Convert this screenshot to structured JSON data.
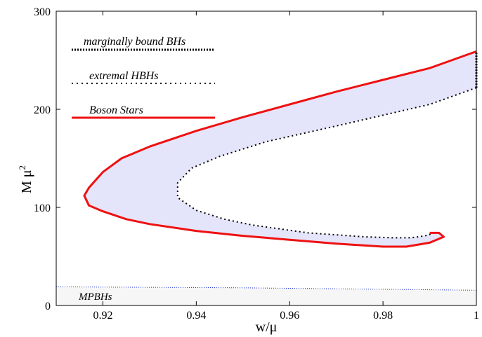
{
  "chart_data": {
    "type": "line",
    "xlabel": "w/μ",
    "ylabel": "M μ",
    "ylabel_superscript": "2",
    "xlim": [
      0.91,
      1.0
    ],
    "ylim": [
      0,
      300
    ],
    "xticks": [
      0.92,
      0.94,
      0.96,
      0.98,
      1.0
    ],
    "xtick_labels": [
      "0.92",
      "0.94",
      "0.96",
      "0.98",
      "1"
    ],
    "yticks": [
      0,
      100,
      200,
      300
    ],
    "ytick_labels": [
      "0",
      "100",
      "200",
      "300"
    ],
    "grid": false,
    "legend": {
      "placement": "top-left"
    },
    "colors": {
      "boson_stars": "#ee1111",
      "extremal": "#000000",
      "marginal": "#000000",
      "mpbhs": "#1a2fd0",
      "region_fill": "#e4e5fb",
      "mpbh_fill": "#f6f6f6"
    },
    "series": [
      {
        "name": "marginally bound BHs",
        "style": "dense-dotted",
        "x": [
          1.0,
          1.0
        ],
        "y": [
          222,
          259
        ]
      },
      {
        "name": "extremal HBHs",
        "style": "sparse-dotted",
        "x": [
          1.0,
          0.99,
          0.97,
          0.955,
          0.945,
          0.939,
          0.936,
          0.936,
          0.94,
          0.946,
          0.952,
          0.958,
          0.964,
          0.97,
          0.976,
          0.982,
          0.986,
          0.989,
          0.991
        ],
        "y": [
          222,
          205,
          183,
          167,
          152,
          140,
          125,
          110,
          97,
          88,
          82,
          78,
          74,
          72,
          70,
          69,
          69,
          71,
          74
        ]
      },
      {
        "name": "Boson Stars",
        "style": "solid",
        "x": [
          1.0,
          0.99,
          0.98,
          0.97,
          0.96,
          0.95,
          0.94,
          0.93,
          0.924,
          0.92,
          0.917,
          0.916,
          0.917,
          0.92,
          0.925,
          0.93,
          0.94,
          0.95,
          0.96,
          0.97,
          0.98,
          0.985,
          0.99,
          0.993,
          0.992,
          0.99
        ],
        "y": [
          259,
          242,
          230,
          218,
          205,
          192,
          178,
          162,
          150,
          136,
          120,
          112,
          102,
          96,
          88,
          83,
          76,
          71,
          67,
          63,
          60,
          60,
          64,
          70,
          74,
          74
        ]
      },
      {
        "name": "MPBHs",
        "style": "fine-dotted",
        "x": [
          0.91,
          0.93,
          0.95,
          0.97,
          0.99,
          1.0
        ],
        "y": [
          19,
          18.5,
          18,
          17,
          16,
          15.5
        ]
      }
    ],
    "annotations": [
      "MPBHs"
    ]
  }
}
